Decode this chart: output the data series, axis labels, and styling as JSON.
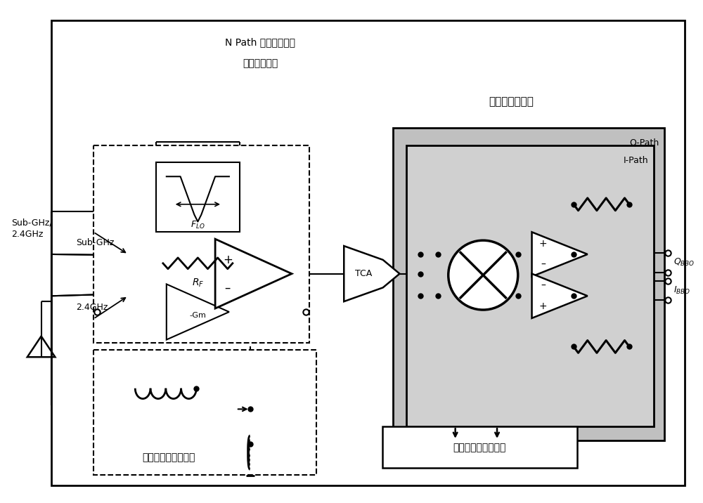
{
  "bg_color": "#ffffff",
  "black": "#000000",
  "gray_outer": "#c0c0c0",
  "gray_inner": "#d0d0d0",
  "text_npath_line1": "N Path 陷波滤波反馈",
  "text_npath_line2": "低噪声放大器",
  "text_mixer": "电流复用混频器",
  "text_lna": "源简并低噪声放大器",
  "text_driver": "多相本振信号驱动器",
  "text_subghz_ant": "Sub-GHz/\n2.4GHz",
  "text_subghz": "Sub-GHz",
  "text_2p4ghz": "2.4GHz",
  "text_tca": "TCA",
  "text_qpath": "Q-Path",
  "text_ipath": "I-Path",
  "text_qbbo": "$Q_{BBO}$",
  "text_ibbo": "$I_{BBO}$",
  "text_flo": "$F_{LO}$",
  "text_rf": "$R_F$",
  "text_gm": "-Gm"
}
